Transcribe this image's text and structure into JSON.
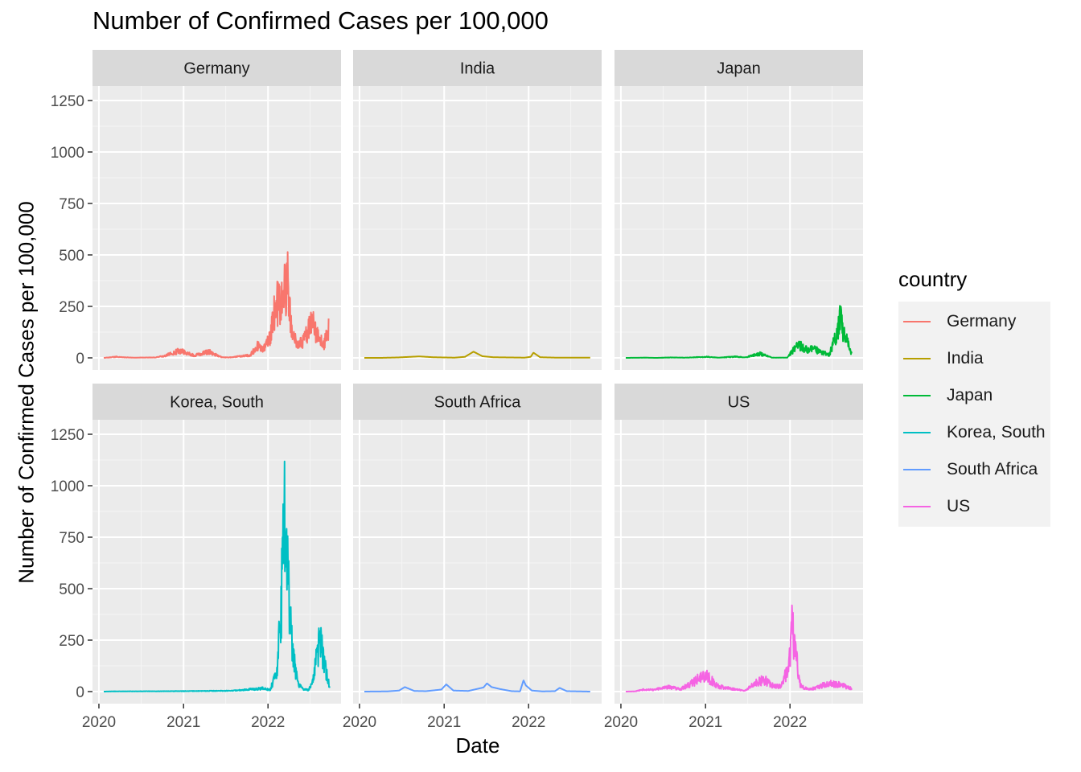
{
  "chart_data": {
    "type": "line",
    "title": "Number of Confirmed Cases per 100,000",
    "xlabel": "Date",
    "ylabel": "Number of Confirmed Cases per 100,000",
    "xlim": [
      "2020-01-22",
      "2022-09-25"
    ],
    "ylim": [
      0,
      1250
    ],
    "x_ticks": [
      "2020",
      "2021",
      "2022"
    ],
    "y_ticks": [
      "0",
      "250",
      "500",
      "750",
      "1000",
      "1250"
    ],
    "grid": true,
    "legend": {
      "title": "country",
      "position": "right"
    },
    "facets": [
      "Germany",
      "India",
      "Japan",
      "Korea, South",
      "South Africa",
      "US"
    ],
    "series": [
      {
        "name": "Germany",
        "color": "#F8766D",
        "noisy": true,
        "x": [
          "2020-01-22",
          "2020-03-15",
          "2020-04-15",
          "2020-06-01",
          "2020-09-01",
          "2020-10-15",
          "2020-11-15",
          "2020-12-20",
          "2021-01-15",
          "2021-02-15",
          "2021-03-15",
          "2021-04-20",
          "2021-05-20",
          "2021-06-15",
          "2021-07-15",
          "2021-08-15",
          "2021-09-15",
          "2021-10-15",
          "2021-11-20",
          "2021-12-10",
          "2022-01-05",
          "2022-01-25",
          "2022-02-10",
          "2022-02-25",
          "2022-03-15",
          "2022-03-25",
          "2022-04-15",
          "2022-05-15",
          "2022-06-15",
          "2022-07-10",
          "2022-07-25",
          "2022-08-15",
          "2022-09-01",
          "2022-09-20"
        ],
        "y": [
          0,
          5,
          3,
          1,
          2,
          10,
          25,
          35,
          22,
          12,
          18,
          30,
          15,
          3,
          2,
          5,
          10,
          12,
          60,
          45,
          80,
          200,
          260,
          250,
          320,
          400,
          100,
          60,
          110,
          170,
          130,
          80,
          70,
          150
        ]
      },
      {
        "name": "India",
        "color": "#B79F00",
        "noisy": false,
        "x": [
          "2020-01-22",
          "2020-04-01",
          "2020-06-15",
          "2020-09-15",
          "2020-11-15",
          "2021-02-15",
          "2021-04-01",
          "2021-05-08",
          "2021-06-15",
          "2021-08-01",
          "2021-12-15",
          "2022-01-10",
          "2022-01-22",
          "2022-02-20",
          "2022-05-01",
          "2022-09-25"
        ],
        "y": [
          0,
          0,
          2,
          7,
          3,
          1,
          5,
          30,
          8,
          3,
          1,
          5,
          25,
          3,
          1,
          1
        ]
      },
      {
        "name": "Japan",
        "color": "#00BA38",
        "noisy": true,
        "x": [
          "2020-01-22",
          "2020-04-15",
          "2020-06-01",
          "2020-08-05",
          "2020-10-01",
          "2021-01-10",
          "2021-03-01",
          "2021-05-10",
          "2021-06-20",
          "2021-08-25",
          "2021-10-15",
          "2021-12-20",
          "2022-02-05",
          "2022-03-15",
          "2022-04-20",
          "2022-06-20",
          "2022-07-20",
          "2022-08-05",
          "2022-08-25",
          "2022-09-25"
        ],
        "y": [
          0,
          1,
          0,
          2,
          1,
          5,
          1,
          6,
          2,
          20,
          1,
          1,
          70,
          40,
          40,
          15,
          120,
          190,
          110,
          20
        ]
      },
      {
        "name": "Korea, South",
        "color": "#00BFC4",
        "noisy": true,
        "x": [
          "2020-01-22",
          "2020-03-01",
          "2020-12-15",
          "2021-08-01",
          "2021-12-10",
          "2022-01-10",
          "2022-02-10",
          "2022-02-28",
          "2022-03-10",
          "2022-03-20",
          "2022-04-01",
          "2022-04-15",
          "2022-05-10",
          "2022-06-01",
          "2022-06-25",
          "2022-07-15",
          "2022-07-28",
          "2022-08-15",
          "2022-08-30",
          "2022-09-15",
          "2022-09-25"
        ],
        "y": [
          0,
          1,
          2,
          4,
          15,
          8,
          100,
          450,
          850,
          700,
          500,
          200,
          40,
          12,
          8,
          50,
          150,
          250,
          150,
          60,
          30
        ]
      },
      {
        "name": "South Africa",
        "color": "#619CFF",
        "noisy": false,
        "x": [
          "2020-01-22",
          "2020-05-01",
          "2020-06-20",
          "2020-07-15",
          "2020-08-25",
          "2020-10-15",
          "2020-12-20",
          "2021-01-10",
          "2021-02-10",
          "2021-04-15",
          "2021-06-20",
          "2021-07-05",
          "2021-07-25",
          "2021-09-01",
          "2021-10-20",
          "2021-11-25",
          "2021-12-10",
          "2021-12-20",
          "2022-01-15",
          "2022-03-01",
          "2022-04-25",
          "2022-05-15",
          "2022-06-15",
          "2022-09-25"
        ],
        "y": [
          0,
          1,
          5,
          22,
          3,
          2,
          10,
          35,
          5,
          3,
          20,
          40,
          22,
          12,
          2,
          1,
          55,
          30,
          5,
          1,
          2,
          18,
          2,
          0
        ]
      },
      {
        "name": "US",
        "color": "#F564E3",
        "noisy": true,
        "x": [
          "2020-01-22",
          "2020-03-01",
          "2020-04-10",
          "2020-05-20",
          "2020-07-20",
          "2020-09-15",
          "2020-11-01",
          "2020-12-15",
          "2021-01-10",
          "2021-02-15",
          "2021-03-20",
          "2021-06-20",
          "2021-08-15",
          "2021-09-15",
          "2021-10-25",
          "2021-11-20",
          "2021-12-20",
          "2022-01-05",
          "2022-01-12",
          "2022-01-25",
          "2022-02-15",
          "2022-03-20",
          "2022-05-01",
          "2022-06-15",
          "2022-08-01",
          "2022-09-25"
        ],
        "y": [
          0,
          1,
          10,
          8,
          22,
          12,
          40,
          70,
          75,
          30,
          20,
          4,
          50,
          55,
          25,
          25,
          100,
          250,
          340,
          180,
          30,
          10,
          20,
          40,
          35,
          15
        ]
      }
    ]
  }
}
